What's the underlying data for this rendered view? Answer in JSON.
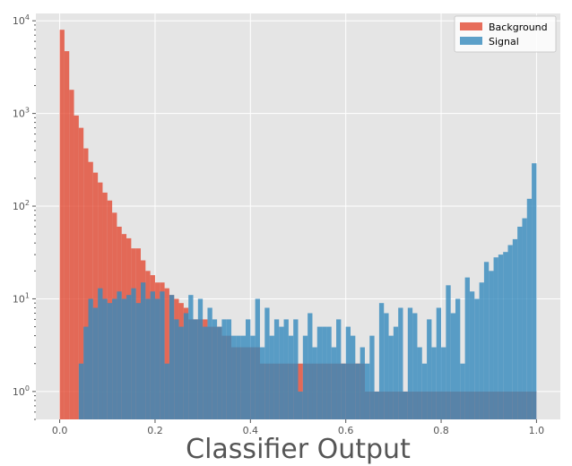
{
  "chart_data": {
    "type": "histogram",
    "title": "",
    "xlabel": "Classifier Output",
    "ylabel": "",
    "xlim": [
      -0.05,
      1.05
    ],
    "ylim": [
      0.5,
      12000
    ],
    "yscale": "log",
    "grid": true,
    "legend": {
      "placement": "top-right"
    },
    "x_ticks": [
      "0.0",
      "0.2",
      "0.4",
      "0.6",
      "0.8",
      "1.0"
    ],
    "y_ticks": [
      {
        "base": "10",
        "exp": "0"
      },
      {
        "base": "10",
        "exp": "1"
      },
      {
        "base": "10",
        "exp": "2"
      },
      {
        "base": "10",
        "exp": "3"
      },
      {
        "base": "10",
        "exp": "4"
      }
    ],
    "bins": {
      "start": 0.0,
      "end": 1.0,
      "count": 100
    },
    "series": [
      {
        "name": "Background",
        "color": "#e24a33",
        "counts": [
          8000,
          4700,
          1800,
          950,
          700,
          420,
          300,
          230,
          180,
          140,
          115,
          85,
          60,
          50,
          45,
          35,
          35,
          26,
          20,
          18,
          15,
          15,
          13,
          11,
          10,
          9,
          8,
          6,
          6,
          6,
          6,
          5,
          5,
          5,
          4,
          4,
          3,
          3,
          3,
          3,
          3,
          3,
          2,
          2,
          2,
          2,
          2,
          2,
          2,
          2,
          2,
          2,
          2,
          2,
          2,
          2,
          2,
          2,
          2,
          2,
          2,
          2,
          2,
          2,
          1,
          1,
          1,
          1,
          1,
          1,
          1,
          1,
          1,
          1,
          1,
          1,
          1,
          1,
          1,
          1,
          1,
          1,
          1,
          1,
          1,
          1,
          1,
          1,
          1,
          1,
          1,
          1,
          1,
          1,
          1,
          1,
          1,
          1,
          1,
          1
        ]
      },
      {
        "name": "Signal",
        "color": "#348abd",
        "counts": [
          0,
          0,
          0,
          0,
          2,
          5,
          10,
          8,
          13,
          10,
          9,
          10,
          12,
          10,
          11,
          13,
          9,
          15,
          10,
          12,
          10,
          12,
          2,
          11,
          6,
          5,
          7,
          11,
          6,
          10,
          5,
          8,
          6,
          5,
          6,
          6,
          4,
          4,
          4,
          6,
          4,
          10,
          3,
          8,
          4,
          6,
          5,
          6,
          4,
          6,
          1,
          4,
          7,
          3,
          5,
          5,
          5,
          3,
          6,
          2,
          5,
          4,
          2,
          3,
          2,
          4,
          1,
          9,
          7,
          4,
          5,
          8,
          1,
          8,
          7,
          3,
          2,
          6,
          3,
          8,
          3,
          14,
          7,
          10,
          2,
          17,
          12,
          10,
          15,
          25,
          20,
          28,
          30,
          32,
          38,
          44,
          60,
          74,
          120,
          290
        ]
      }
    ]
  }
}
